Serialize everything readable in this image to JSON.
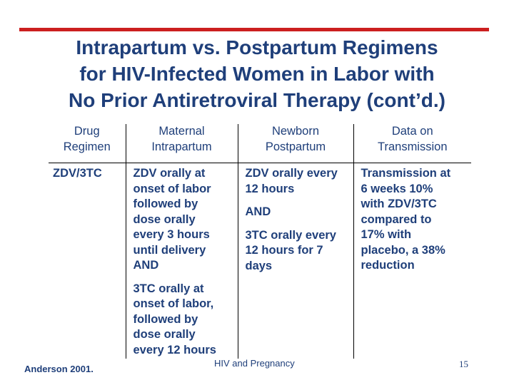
{
  "slide": {
    "title_lines": [
      "Intrapartum vs. Postpartum Regimens",
      "for HIV-Infected Women in Labor with",
      "No Prior Antiretroviral Therapy (cont’d.)"
    ],
    "accent_color": "#cc1f1f",
    "text_color": "#1f3f7a"
  },
  "table": {
    "headers": [
      [
        "Drug",
        "Regimen"
      ],
      [
        "Maternal",
        "Intrapartum"
      ],
      [
        "Newborn",
        "Postpartum"
      ],
      [
        "Data on",
        "Transmission"
      ]
    ],
    "row": {
      "drug": "ZDV/3TC",
      "maternal": [
        [
          "ZDV orally at",
          "onset of labor",
          "followed by",
          "dose orally",
          "every 3 hours",
          "until delivery",
          "AND"
        ],
        [
          "3TC orally at",
          "onset of labor,",
          "followed by",
          "dose orally",
          "every 12 hours"
        ]
      ],
      "newborn": [
        [
          "ZDV orally every",
          "12 hours"
        ],
        [
          "AND"
        ],
        [
          "3TC orally every",
          "12 hours for 7",
          "days"
        ]
      ],
      "transmission": [
        [
          "Transmission at",
          "6 weeks 10%",
          "with ZDV/3TC",
          "compared to",
          "17% with",
          "placebo, a 38%",
          "reduction"
        ]
      ]
    }
  },
  "footer": {
    "citation": "Anderson 2001.",
    "center_text": "HIV and Pregnancy",
    "page_number": "15"
  }
}
